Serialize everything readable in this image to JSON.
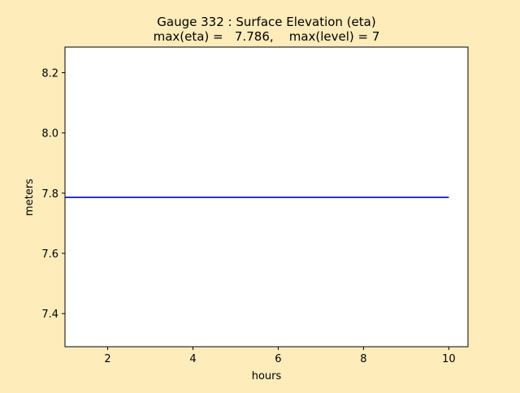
{
  "chart_data": {
    "type": "line",
    "title_line1": "Gauge 332 : Surface Elevation (eta)",
    "title_line2": "max(eta) =   7.786,    max(level) = 7",
    "xlabel": "hours",
    "ylabel": "meters",
    "xlim": [
      1.0,
      10.45
    ],
    "ylim": [
      7.29,
      8.285
    ],
    "xticks": [
      2,
      4,
      6,
      8,
      10
    ],
    "yticks": [
      7.4,
      7.6,
      7.8,
      8.0,
      8.2
    ],
    "xtick_labels": [
      "2",
      "4",
      "6",
      "8",
      "10"
    ],
    "ytick_labels": [
      "7.4",
      "7.6",
      "7.8",
      "8.0",
      "8.2"
    ],
    "grid": false,
    "series": [
      {
        "color": "#0000cc",
        "x": [
          1,
          10
        ],
        "y": [
          7.786,
          7.786
        ]
      }
    ]
  },
  "colors": {
    "figure_background": "#feecbb",
    "axes_background": "#ffffff"
  }
}
